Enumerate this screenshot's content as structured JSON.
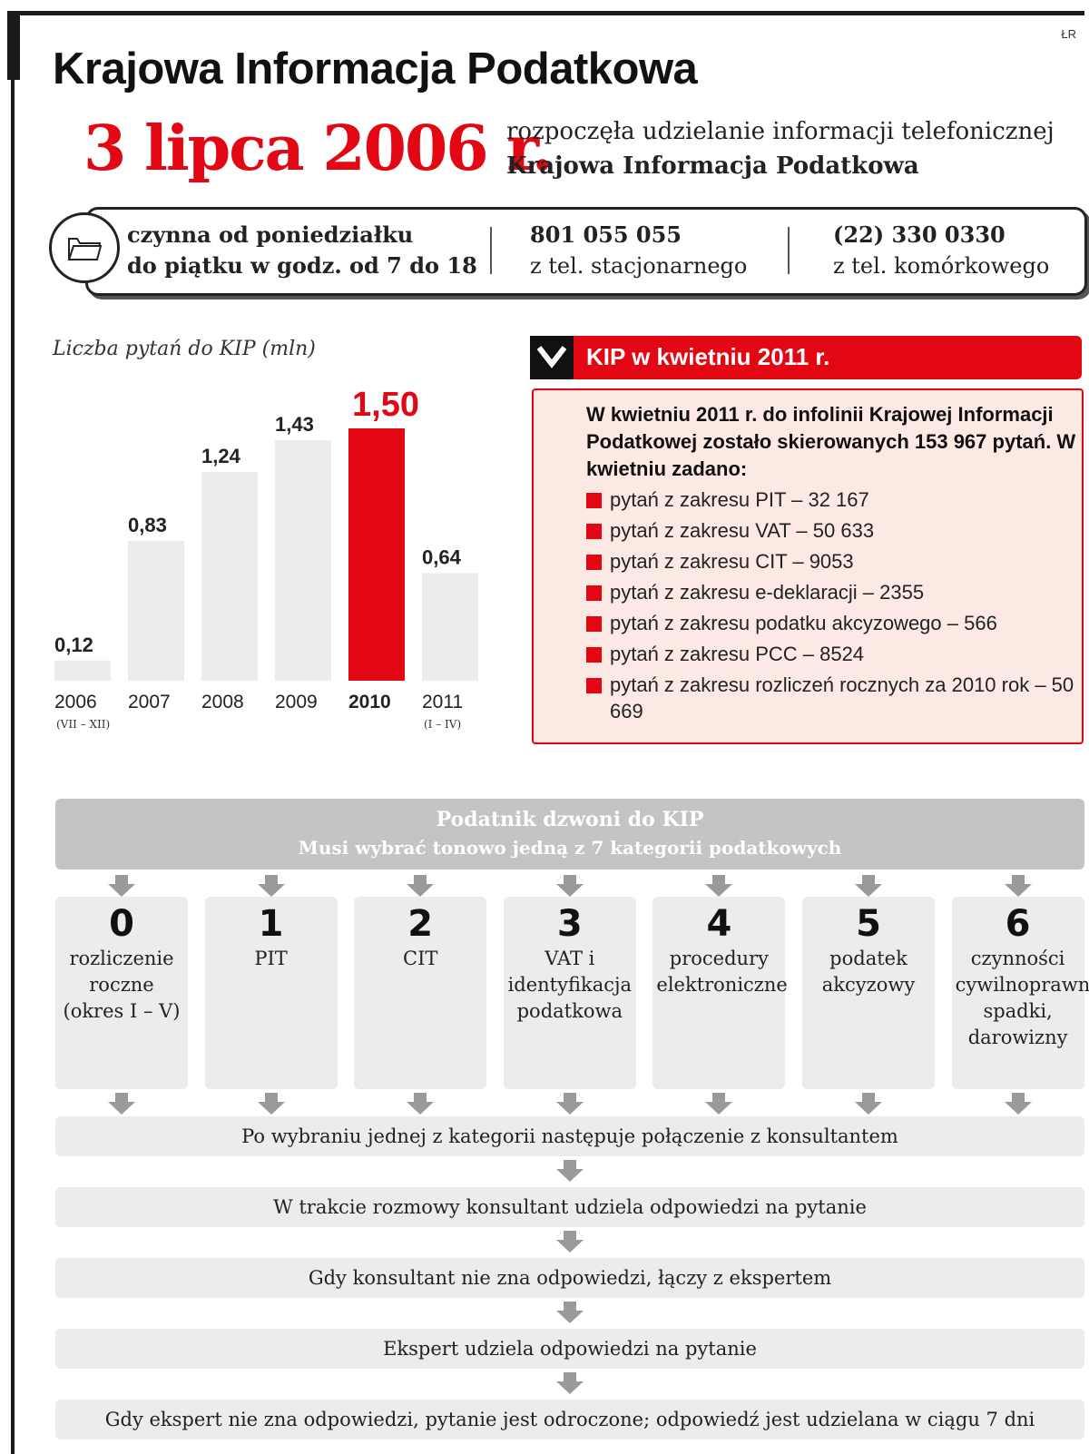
{
  "credit": "ŁR",
  "title": "Krajowa Informacja Podatkowa",
  "intro": {
    "date": "3 lipca 2006 r.",
    "line1": "rozpoczęła udzielanie informacji telefonicznej",
    "line2": "Krajowa Informacja Podatkowa"
  },
  "info": {
    "hours_line1": "czynna od poniedziałku",
    "hours_line2": "do piątku w godz. od 7 do 18",
    "phone1": "801 055 055",
    "phone1_label": "z tel. stacjonarnego",
    "phone2": "(22) 330 0330",
    "phone2_label": "z tel. komórkowego"
  },
  "chart_data": {
    "type": "bar",
    "title": "Liczba pytań do KIP (mln)",
    "categories": [
      "2006",
      "2007",
      "2008",
      "2009",
      "2010",
      "2011"
    ],
    "category_notes": [
      "(VII – XII)",
      "",
      "",
      "",
      "",
      "(I – IV)"
    ],
    "values": [
      0.12,
      0.83,
      1.24,
      1.43,
      1.5,
      0.64
    ],
    "value_labels": [
      "0,12",
      "0,83",
      "1,24",
      "1,43",
      "1,50",
      "0,64"
    ],
    "highlight_index": 4,
    "ylim": [
      0,
      1.5
    ],
    "colors": {
      "normal": "#ececec",
      "highlight": "#e30613"
    }
  },
  "kip": {
    "title": "KIP w kwietniu 2011 r.",
    "intro": "W kwietniu 2011 r. do infolinii Krajowej Informacji Podatkowej zostało skierowanych 153 967 pytań. W kwietniu zadano:",
    "items": [
      "pytań z zakresu PIT – 32 167",
      "pytań z zakresu VAT – 50 633",
      "pytań z zakresu CIT – 9053",
      "pytań z zakresu e-deklaracji – 2355",
      "pytań z zakresu podatku akcyzowego – 566",
      "pytań z zakresu PCC – 8524",
      "pytań z zakresu rozliczeń rocznych za 2010 rok – 50 669"
    ]
  },
  "flow": {
    "header1": "Podatnik dzwoni do KIP",
    "header2": "Musi wybrać tonowo jedną z 7 kategorii podatkowych",
    "categories": [
      {
        "num": "0",
        "label": "rozliczenie roczne (okres I – V)"
      },
      {
        "num": "1",
        "label": "PIT"
      },
      {
        "num": "2",
        "label": "CIT"
      },
      {
        "num": "3",
        "label": "VAT i identyfikacja podatkowa"
      },
      {
        "num": "4",
        "label": "procedury elektroniczne"
      },
      {
        "num": "5",
        "label": "podatek akcyzowy"
      },
      {
        "num": "6",
        "label": "czynności cywilnoprawne, spadki, darowizny"
      }
    ],
    "steps": [
      "Po wybraniu jednej z kategorii następuje połączenie z konsultantem",
      "W trakcie rozmowy konsultant udziela odpowiedzi na pytanie",
      "Gdy konsultant nie zna odpowiedzi, łączy z ekspertem",
      "Ekspert udziela odpowiedzi na pytanie",
      "Gdy ekspert nie zna odpowiedzi, pytanie jest odroczone; odpowiedź jest udzielana w ciągu 7 dni"
    ]
  },
  "colors": {
    "accent": "#e30613",
    "dark": "#111111",
    "gray": "#c4c4c4",
    "light": "#ececec",
    "pink": "#fce9e4"
  }
}
